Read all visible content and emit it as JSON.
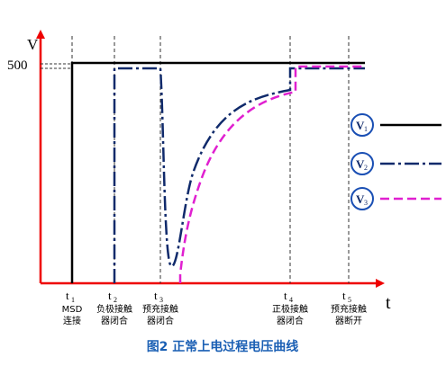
{
  "axis": {
    "y_label": "V",
    "x_label": "t",
    "y_tick": "500"
  },
  "events": [
    {
      "t": "t",
      "sub": "1",
      "lines": [
        "MSD",
        "连接"
      ]
    },
    {
      "t": "t",
      "sub": "2",
      "lines": [
        "负极接触",
        "器闭合"
      ]
    },
    {
      "t": "t",
      "sub": "3",
      "lines": [
        "预充接触",
        "器闭合"
      ]
    },
    {
      "t": "t",
      "sub": "4",
      "lines": [
        "正极接触",
        "器闭合"
      ]
    },
    {
      "t": "t",
      "sub": "5",
      "lines": [
        "预充接触",
        "器断开"
      ]
    }
  ],
  "legend": [
    {
      "v": "V",
      "sub": "1"
    },
    {
      "v": "V",
      "sub": "2"
    },
    {
      "v": "V",
      "sub": "3"
    }
  ],
  "caption": "图2   正常上电过程电压曲线"
}
